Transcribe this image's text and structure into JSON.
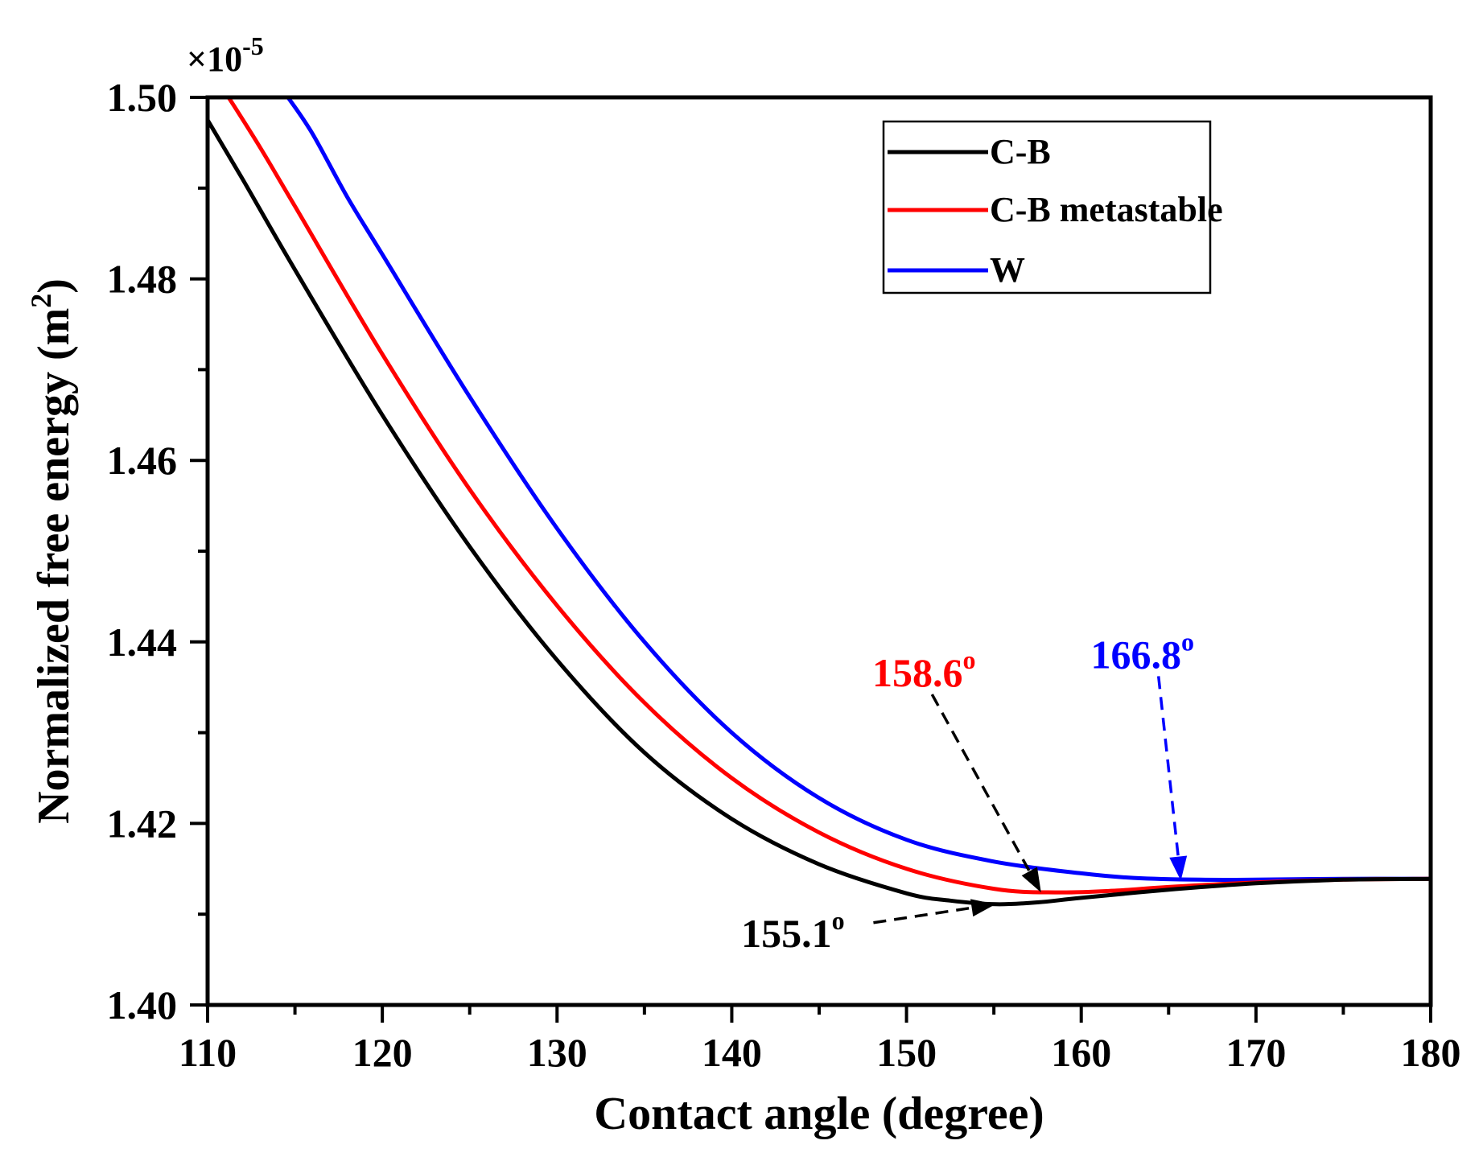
{
  "chart_data": {
    "type": "line",
    "title": "",
    "xlabel": "Contact angle (degree)",
    "ylabel": "Normalized free energy (m",
    "ylabel_superscript": "2",
    "ylabel_close": ")",
    "y_multiplier_base": "×10",
    "y_multiplier_exp": "-5",
    "xlim": [
      110,
      180
    ],
    "ylim": [
      1.4,
      1.5
    ],
    "x_ticks": [
      {
        "value": 110,
        "label": "110"
      },
      {
        "value": 120,
        "label": "120"
      },
      {
        "value": 130,
        "label": "130"
      },
      {
        "value": 140,
        "label": "140"
      },
      {
        "value": 150,
        "label": "150"
      },
      {
        "value": 160,
        "label": "160"
      },
      {
        "value": 170,
        "label": "170"
      },
      {
        "value": 180,
        "label": "180"
      }
    ],
    "y_ticks": [
      {
        "value": 1.4,
        "label": "1.40"
      },
      {
        "value": 1.42,
        "label": "1.42"
      },
      {
        "value": 1.44,
        "label": "1.44"
      },
      {
        "value": 1.46,
        "label": "1.46"
      },
      {
        "value": 1.48,
        "label": "1.48"
      },
      {
        "value": 1.5,
        "label": "1.50"
      }
    ],
    "grid": false,
    "legend_position": "top-right",
    "series": [
      {
        "name": "C-B",
        "color": "#000000",
        "x": [
          110,
          112,
          115,
          120,
          125,
          130,
          135,
          140,
          145,
          150,
          152.5,
          155.1,
          157.5,
          160,
          165,
          170,
          175,
          180
        ],
        "y": [
          1.4975,
          1.491,
          1.481,
          1.465,
          1.4505,
          1.438,
          1.4278,
          1.4205,
          1.4155,
          1.4123,
          1.4115,
          1.4111,
          1.4113,
          1.4118,
          1.4127,
          1.4134,
          1.4138,
          1.4139
        ]
      },
      {
        "name": "C-B metastable",
        "color": "#ff0000",
        "x": [
          111.2,
          113,
          115,
          120,
          125,
          130,
          135,
          140,
          145,
          150,
          155,
          158.6,
          162,
          165,
          170,
          175,
          180
        ],
        "y": [
          1.5,
          1.4945,
          1.488,
          1.4717,
          1.4568,
          1.444,
          1.4333,
          1.425,
          1.419,
          1.415,
          1.4128,
          1.4124,
          1.4126,
          1.413,
          1.4135,
          1.4138,
          1.4139
        ]
      },
      {
        "name": "W",
        "color": "#0000ff",
        "x": [
          114.6,
          116,
          118,
          120,
          125,
          130,
          135,
          140,
          145,
          150,
          155,
          160,
          163,
          166.8,
          170,
          175,
          180
        ],
        "y": [
          1.5,
          1.496,
          1.489,
          1.4827,
          1.467,
          1.4525,
          1.44,
          1.43,
          1.4228,
          1.4182,
          1.4158,
          1.4145,
          1.414,
          1.4138,
          1.4138,
          1.4139,
          1.4139
        ]
      }
    ],
    "annotations": [
      {
        "id": "cb",
        "text": "155.1",
        "sup": "o",
        "color": "#000000",
        "arrow_color": "#000000",
        "label_x": 143.5,
        "label_y": 1.408,
        "target_x": 155.1,
        "target_y": 1.4111
      },
      {
        "id": "cbm",
        "text": "158.6",
        "sup": "o",
        "color": "#ff0000",
        "arrow_color": "#000000",
        "label_x": 151.0,
        "label_y": 1.4367,
        "target_x": 157.7,
        "target_y": 1.4124
      },
      {
        "id": "w",
        "text": "166.8",
        "sup": "o",
        "color": "#0000ff",
        "arrow_color": "#0000ff",
        "label_x": 163.5,
        "label_y": 1.4387,
        "target_x": 165.7,
        "target_y": 1.4137
      }
    ]
  }
}
